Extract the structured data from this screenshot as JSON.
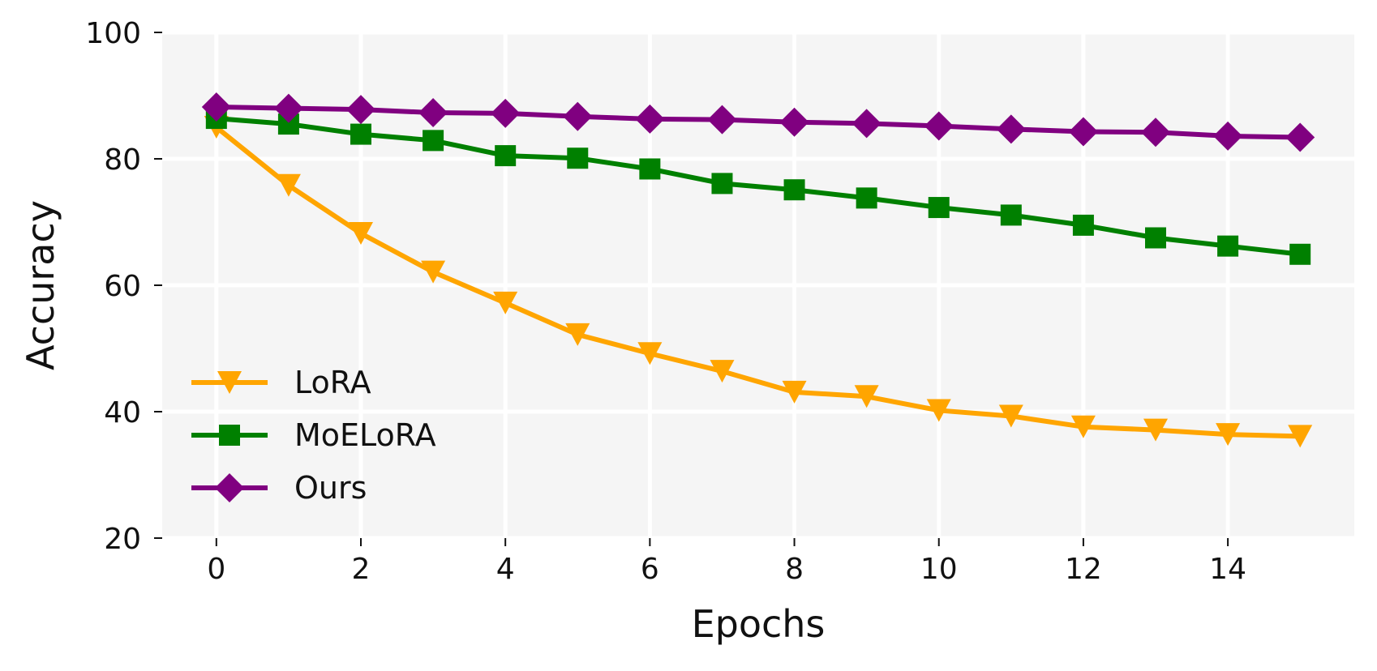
{
  "chart_data": {
    "type": "line",
    "title": "",
    "xlabel": "Epochs",
    "ylabel": "Accuracy",
    "xlim": [
      -0.75,
      15.75
    ],
    "ylim": [
      20,
      100
    ],
    "grid": true,
    "background": "#f5f5f5",
    "legend_position": "lower-left",
    "x": [
      0,
      1,
      2,
      3,
      4,
      5,
      6,
      7,
      8,
      9,
      10,
      11,
      12,
      13,
      14,
      15
    ],
    "xticks": [
      "0",
      "2",
      "4",
      "6",
      "8",
      "10",
      "12",
      "14"
    ],
    "yticks": [
      "20",
      "40",
      "60",
      "80",
      "100"
    ],
    "series": [
      {
        "name": "LoRA",
        "color": "#ffa500",
        "marker": "triangle-down",
        "values": [
          85.0,
          75.8,
          68.2,
          62.1,
          57.2,
          52.2,
          49.2,
          46.4,
          43.1,
          42.4,
          40.2,
          39.3,
          37.6,
          37.1,
          36.4,
          36.1
        ]
      },
      {
        "name": "MoELoRA",
        "color": "#008000",
        "marker": "square",
        "values": [
          86.4,
          85.5,
          83.9,
          82.9,
          80.5,
          80.1,
          78.4,
          76.1,
          75.1,
          73.8,
          72.3,
          71.1,
          69.5,
          67.5,
          66.2,
          64.9
        ]
      },
      {
        "name": "Ours",
        "color": "#800080",
        "marker": "diamond",
        "values": [
          88.2,
          88.0,
          87.8,
          87.3,
          87.2,
          86.7,
          86.3,
          86.2,
          85.8,
          85.6,
          85.2,
          84.7,
          84.3,
          84.2,
          83.6,
          83.4
        ]
      }
    ]
  }
}
